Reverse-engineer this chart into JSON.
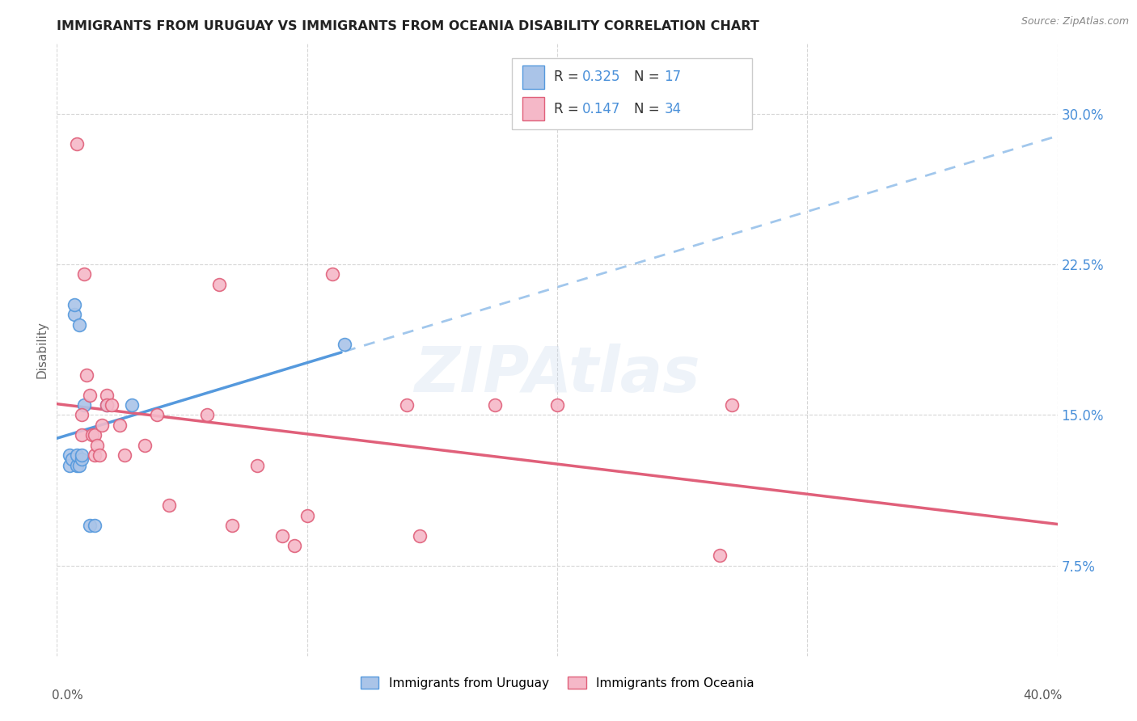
{
  "title": "IMMIGRANTS FROM URUGUAY VS IMMIGRANTS FROM OCEANIA DISABILITY CORRELATION CHART",
  "source": "Source: ZipAtlas.com",
  "ylabel": "Disability",
  "yticks": [
    0.075,
    0.15,
    0.225,
    0.3
  ],
  "ytick_labels": [
    "7.5%",
    "15.0%",
    "22.5%",
    "30.0%"
  ],
  "xlim": [
    0.0,
    0.4
  ],
  "ylim": [
    0.03,
    0.335
  ],
  "legend1_r": "0.325",
  "legend1_n": "17",
  "legend2_r": "0.147",
  "legend2_n": "34",
  "legend_label1": "Immigrants from Uruguay",
  "legend_label2": "Immigrants from Oceania",
  "watermark": "ZIPAtlas",
  "blue_color": "#aac4e8",
  "pink_color": "#f5b8c8",
  "line_blue": "#5599dd",
  "line_pink": "#e0607a",
  "r_n_color": "#4a90d9",
  "title_color": "#222222",
  "uruguay_x": [
    0.005,
    0.005,
    0.006,
    0.007,
    0.007,
    0.008,
    0.008,
    0.009,
    0.009,
    0.01,
    0.01,
    0.011,
    0.013,
    0.015,
    0.02,
    0.03,
    0.115
  ],
  "uruguay_y": [
    0.13,
    0.125,
    0.128,
    0.2,
    0.205,
    0.125,
    0.13,
    0.195,
    0.125,
    0.128,
    0.13,
    0.155,
    0.095,
    0.095,
    0.155,
    0.155,
    0.185
  ],
  "oceania_x": [
    0.008,
    0.01,
    0.01,
    0.011,
    0.012,
    0.013,
    0.014,
    0.015,
    0.015,
    0.016,
    0.017,
    0.018,
    0.02,
    0.02,
    0.022,
    0.025,
    0.027,
    0.035,
    0.04,
    0.045,
    0.06,
    0.065,
    0.07,
    0.08,
    0.09,
    0.095,
    0.1,
    0.11,
    0.14,
    0.145,
    0.175,
    0.2,
    0.265,
    0.27
  ],
  "oceania_y": [
    0.285,
    0.15,
    0.14,
    0.22,
    0.17,
    0.16,
    0.14,
    0.14,
    0.13,
    0.135,
    0.13,
    0.145,
    0.16,
    0.155,
    0.155,
    0.145,
    0.13,
    0.135,
    0.15,
    0.105,
    0.15,
    0.215,
    0.095,
    0.125,
    0.09,
    0.085,
    0.1,
    0.22,
    0.155,
    0.09,
    0.155,
    0.155,
    0.08,
    0.155
  ]
}
